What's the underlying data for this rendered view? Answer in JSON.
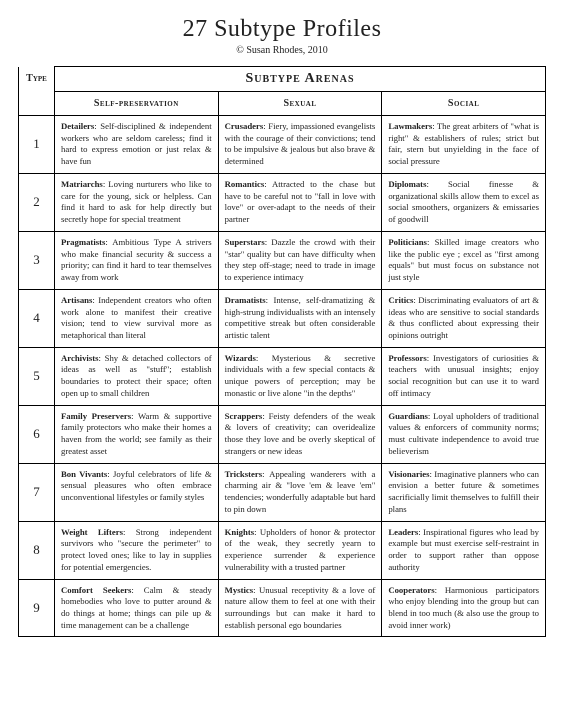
{
  "title": "27 Subtype Profiles",
  "copyright": "© Susan Rhodes, 2010",
  "spanner": "Subtype Arenas",
  "headers": {
    "type": "Type",
    "sp": "Self-preservation",
    "sx": "Sexual",
    "so": "Social"
  },
  "rows": [
    {
      "type": "1",
      "sp": {
        "name": "Detailers",
        "desc": "Self-disciplined & independent workers who are seldom careless; find it hard to express emotion or just relax & have fun"
      },
      "sx": {
        "name": "Crusaders",
        "desc": "Fiery, impassioned evangelists with the courage of their convictions; tend to be impulsive & jealous but also brave & determined"
      },
      "so": {
        "name": "Lawmakers",
        "desc": "The great arbiters of \"what is right\" & establishers of rules; strict but fair, stern but unyielding in the face of social pressure"
      }
    },
    {
      "type": "2",
      "sp": {
        "name": "Matriarchs",
        "desc": "Loving nurturers who like to care for the young, sick or helpless. Can find it hard to ask for help directly but secretly hope for special treatment"
      },
      "sx": {
        "name": "Romantics",
        "desc": "Attracted to the chase but have to be careful not to \"fall in love with love\" or over-adapt to the needs of their partner"
      },
      "so": {
        "name": "Diplomats",
        "desc": "Social finesse & organizational skills allow them to excel as social smoothers, organizers & emissaries of goodwill"
      }
    },
    {
      "type": "3",
      "sp": {
        "name": "Pragmatists",
        "desc": "Ambitious Type A strivers who make financial security & success a priority; can find it hard to tear themselves away from work"
      },
      "sx": {
        "name": "Superstars",
        "desc": "Dazzle the crowd with their \"star\" quality but can have difficulty when they step off-stage; need to trade in image to experience intimacy"
      },
      "so": {
        "name": "Politicians",
        "desc": "Skilled image creators who like the public eye ; excel as \"first among equals\" but must focus on substance not just style"
      }
    },
    {
      "type": "4",
      "sp": {
        "name": "Artisans",
        "desc": "Independent creators who often work alone to manifest their creative vision; tend to view survival more as metaphorical than literal"
      },
      "sx": {
        "name": "Dramatists",
        "desc": "Intense, self-dramatizing & high-strung individualists with an intensely competitive streak but often considerable artistic talent"
      },
      "so": {
        "name": "Critics",
        "desc": "Discriminating evaluators of art & ideas who are sensitive to social standards & thus conflicted about expressing their opinions outright"
      }
    },
    {
      "type": "5",
      "sp": {
        "name": "Archivists",
        "desc": "Shy & detached collectors of ideas as well as \"stuff\"; establish boundaries to protect their space; often open up to small children"
      },
      "sx": {
        "name": "Wizards",
        "desc": "Mysterious & secretive individuals with a few special contacts & unique powers of perception; may be monastic or live alone \"in the depths\""
      },
      "so": {
        "name": "Professors",
        "desc": "Investigators of curiosities & teachers with unusual insights; enjoy social recognition but can use it to ward off intimacy"
      }
    },
    {
      "type": "6",
      "sp": {
        "name": "Family Preservers",
        "desc": "Warm & supportive family protectors who make their homes a haven from the world; see family as their greatest asset"
      },
      "sx": {
        "name": "Scrappers",
        "desc": "Feisty defenders of the weak & lovers of creativity; can overidealize those they love and be overly skeptical of strangers or new ideas"
      },
      "so": {
        "name": "Guardians",
        "desc": "Loyal upholders of traditional values & enforcers of community norms; must cultivate independence to avoid true believerism"
      }
    },
    {
      "type": "7",
      "sp": {
        "name": "Bon Vivants",
        "desc": "Joyful celebrators of life & sensual pleasures who often embrace unconventional lifestyles or family styles"
      },
      "sx": {
        "name": "Tricksters",
        "desc": "Appealing wanderers with a charming air & \"love 'em & leave 'em\" tendencies; wonderfully adaptable but hard to pin down"
      },
      "so": {
        "name": "Visionaries",
        "desc": "Imaginative planners who can envision a better future & sometimes sacrificially limit themselves to fulfill their plans"
      }
    },
    {
      "type": "8",
      "sp": {
        "name": "Weight Lifters",
        "desc": "Strong independent survivors who \"secure the perimeter\" to protect loved ones; like to lay in supplies for potential emergencies."
      },
      "sx": {
        "name": "Knights",
        "desc": "Upholders of honor & protector of the weak, they secretly yearn to experience surrender & experience vulnerability with a trusted partner"
      },
      "so": {
        "name": "Leaders",
        "desc": "Inspirational figures who lead by example but must exercise self-restraint in order to support rather than oppose authority"
      }
    },
    {
      "type": "9",
      "sp": {
        "name": "Comfort Seekers",
        "desc": "Calm & steady homebodies who love to putter around & do things at home; things can pile up & time management can be a challenge"
      },
      "sx": {
        "name": "Mystics",
        "desc": "Unusual receptivity & a love of nature allow them to feel at one with their surroundings but can make it hard to establish personal ego boundaries"
      },
      "so": {
        "name": "Cooperators",
        "desc": "Harmonious participators who enjoy blending into the group but can blend in too much (& also use the group to avoid inner work)"
      }
    }
  ]
}
